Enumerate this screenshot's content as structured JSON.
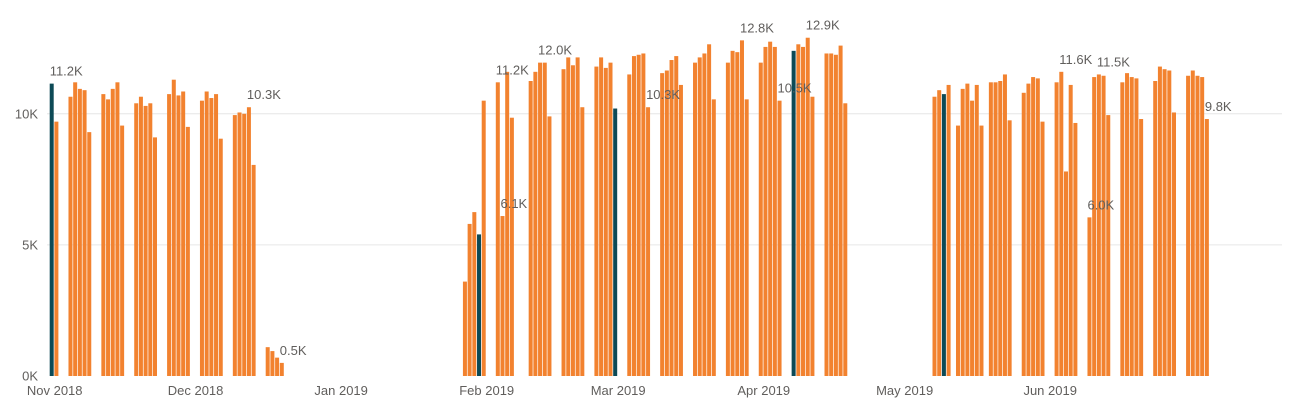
{
  "chart_data": {
    "type": "bar",
    "grid": true,
    "x_axis": {
      "type": "date",
      "range": [
        "2018-10-31",
        "2019-07-21"
      ],
      "ticks": [
        {
          "date": "2018-11-01",
          "label": "Nov 2018"
        },
        {
          "date": "2018-12-01",
          "label": "Dec 2018"
        },
        {
          "date": "2019-01-01",
          "label": "Jan 2019"
        },
        {
          "date": "2019-02-01",
          "label": "Feb 2019"
        },
        {
          "date": "2019-03-01",
          "label": "Mar 2019"
        },
        {
          "date": "2019-04-01",
          "label": "Apr 2019"
        },
        {
          "date": "2019-05-01",
          "label": "May 2019"
        },
        {
          "date": "2019-06-01",
          "label": "Jun 2019"
        }
      ]
    },
    "y_axis": {
      "ylim": [
        0,
        13500
      ],
      "ticks": [
        {
          "value": 0,
          "label": "0K"
        },
        {
          "value": 5000,
          "label": "5K"
        },
        {
          "value": 10000,
          "label": "10K"
        }
      ]
    },
    "colors": {
      "default": "#f2822f",
      "highlight": "#0d4a56",
      "grid": "#e6e6e6",
      "text": "#605e5c"
    },
    "data": [
      {
        "date": "2018-11-01",
        "value": 11150,
        "highlight": true,
        "label": "11.2K"
      },
      {
        "date": "2018-11-02",
        "value": 9700
      },
      {
        "date": "2018-11-05",
        "value": 10650
      },
      {
        "date": "2018-11-06",
        "value": 11200
      },
      {
        "date": "2018-11-07",
        "value": 10950
      },
      {
        "date": "2018-11-08",
        "value": 10900
      },
      {
        "date": "2018-11-09",
        "value": 9300
      },
      {
        "date": "2018-11-12",
        "value": 10750
      },
      {
        "date": "2018-11-13",
        "value": 10550
      },
      {
        "date": "2018-11-14",
        "value": 10950
      },
      {
        "date": "2018-11-15",
        "value": 11200
      },
      {
        "date": "2018-11-16",
        "value": 9550
      },
      {
        "date": "2018-11-19",
        "value": 10400
      },
      {
        "date": "2018-11-20",
        "value": 10650
      },
      {
        "date": "2018-11-21",
        "value": 10300
      },
      {
        "date": "2018-11-22",
        "value": 10400
      },
      {
        "date": "2018-11-23",
        "value": 9100
      },
      {
        "date": "2018-11-26",
        "value": 10750
      },
      {
        "date": "2018-11-27",
        "value": 11300
      },
      {
        "date": "2018-11-28",
        "value": 10700
      },
      {
        "date": "2018-11-29",
        "value": 10850
      },
      {
        "date": "2018-11-30",
        "value": 9500
      },
      {
        "date": "2018-12-03",
        "value": 10500
      },
      {
        "date": "2018-12-04",
        "value": 10850
      },
      {
        "date": "2018-12-05",
        "value": 10600
      },
      {
        "date": "2018-12-06",
        "value": 10750
      },
      {
        "date": "2018-12-07",
        "value": 9050
      },
      {
        "date": "2018-12-10",
        "value": 9950
      },
      {
        "date": "2018-12-11",
        "value": 10050
      },
      {
        "date": "2018-12-12",
        "value": 10000
      },
      {
        "date": "2018-12-13",
        "value": 10250,
        "label": "10.3K"
      },
      {
        "date": "2018-12-14",
        "value": 8050
      },
      {
        "date": "2018-12-17",
        "value": 1100
      },
      {
        "date": "2018-12-18",
        "value": 950
      },
      {
        "date": "2018-12-19",
        "value": 700
      },
      {
        "date": "2018-12-20",
        "value": 500,
        "label": "0.5K"
      },
      {
        "date": "2019-01-28",
        "value": 3600
      },
      {
        "date": "2019-01-29",
        "value": 5800
      },
      {
        "date": "2019-01-30",
        "value": 6250
      },
      {
        "date": "2019-01-31",
        "value": 5400,
        "highlight": true
      },
      {
        "date": "2019-02-01",
        "value": 10500
      },
      {
        "date": "2019-02-04",
        "value": 11200,
        "label": "11.2K"
      },
      {
        "date": "2019-02-05",
        "value": 6100,
        "label": "6.1K"
      },
      {
        "date": "2019-02-06",
        "value": 11600
      },
      {
        "date": "2019-02-07",
        "value": 9850
      },
      {
        "date": "2019-02-11",
        "value": 11250
      },
      {
        "date": "2019-02-12",
        "value": 11600
      },
      {
        "date": "2019-02-13",
        "value": 11950,
        "label": "12.0K"
      },
      {
        "date": "2019-02-14",
        "value": 11950
      },
      {
        "date": "2019-02-15",
        "value": 9900
      },
      {
        "date": "2019-02-18",
        "value": 11700
      },
      {
        "date": "2019-02-19",
        "value": 12150
      },
      {
        "date": "2019-02-20",
        "value": 11850
      },
      {
        "date": "2019-02-21",
        "value": 12150
      },
      {
        "date": "2019-02-22",
        "value": 10250
      },
      {
        "date": "2019-02-25",
        "value": 11800
      },
      {
        "date": "2019-02-26",
        "value": 12150
      },
      {
        "date": "2019-02-27",
        "value": 11750
      },
      {
        "date": "2019-02-28",
        "value": 11950
      },
      {
        "date": "2019-03-01",
        "value": 10200,
        "highlight": true
      },
      {
        "date": "2019-03-04",
        "value": 11500
      },
      {
        "date": "2019-03-05",
        "value": 12200
      },
      {
        "date": "2019-03-06",
        "value": 12250
      },
      {
        "date": "2019-03-07",
        "value": 12300
      },
      {
        "date": "2019-03-08",
        "value": 10250,
        "label": "10.3K"
      },
      {
        "date": "2019-03-11",
        "value": 11550
      },
      {
        "date": "2019-03-12",
        "value": 11650
      },
      {
        "date": "2019-03-13",
        "value": 12050
      },
      {
        "date": "2019-03-14",
        "value": 12200
      },
      {
        "date": "2019-03-15",
        "value": 11100
      },
      {
        "date": "2019-03-18",
        "value": 11950
      },
      {
        "date": "2019-03-19",
        "value": 12150
      },
      {
        "date": "2019-03-20",
        "value": 12300
      },
      {
        "date": "2019-03-21",
        "value": 12650
      },
      {
        "date": "2019-03-22",
        "value": 10550
      },
      {
        "date": "2019-03-25",
        "value": 11950
      },
      {
        "date": "2019-03-26",
        "value": 12400
      },
      {
        "date": "2019-03-27",
        "value": 12350
      },
      {
        "date": "2019-03-28",
        "value": 12800,
        "label": "12.8K"
      },
      {
        "date": "2019-03-29",
        "value": 10550
      },
      {
        "date": "2019-04-01",
        "value": 11950
      },
      {
        "date": "2019-04-02",
        "value": 12550
      },
      {
        "date": "2019-04-03",
        "value": 12750
      },
      {
        "date": "2019-04-04",
        "value": 12550
      },
      {
        "date": "2019-04-05",
        "value": 10500,
        "label": "10.5K"
      },
      {
        "date": "2019-04-08",
        "value": 12400,
        "highlight": true
      },
      {
        "date": "2019-04-09",
        "value": 12650
      },
      {
        "date": "2019-04-10",
        "value": 12550
      },
      {
        "date": "2019-04-11",
        "value": 12900,
        "label": "12.9K"
      },
      {
        "date": "2019-04-12",
        "value": 10650
      },
      {
        "date": "2019-04-15",
        "value": 12300
      },
      {
        "date": "2019-04-16",
        "value": 12300
      },
      {
        "date": "2019-04-17",
        "value": 12250
      },
      {
        "date": "2019-04-18",
        "value": 12600
      },
      {
        "date": "2019-04-19",
        "value": 10400
      },
      {
        "date": "2019-05-08",
        "value": 10650
      },
      {
        "date": "2019-05-09",
        "value": 10900
      },
      {
        "date": "2019-05-10",
        "value": 10750,
        "highlight": true
      },
      {
        "date": "2019-05-11",
        "value": 11100
      },
      {
        "date": "2019-05-13",
        "value": 9550
      },
      {
        "date": "2019-05-14",
        "value": 10950
      },
      {
        "date": "2019-05-15",
        "value": 11150
      },
      {
        "date": "2019-05-16",
        "value": 10500
      },
      {
        "date": "2019-05-17",
        "value": 11100
      },
      {
        "date": "2019-05-18",
        "value": 9550
      },
      {
        "date": "2019-05-20",
        "value": 11200
      },
      {
        "date": "2019-05-21",
        "value": 11200
      },
      {
        "date": "2019-05-22",
        "value": 11250
      },
      {
        "date": "2019-05-23",
        "value": 11500
      },
      {
        "date": "2019-05-24",
        "value": 9750
      },
      {
        "date": "2019-05-27",
        "value": 10800
      },
      {
        "date": "2019-05-28",
        "value": 11150
      },
      {
        "date": "2019-05-29",
        "value": 11400
      },
      {
        "date": "2019-05-30",
        "value": 11350
      },
      {
        "date": "2019-05-31",
        "value": 9700
      },
      {
        "date": "2019-06-03",
        "value": 11200
      },
      {
        "date": "2019-06-04",
        "value": 11600,
        "label": "11.6K"
      },
      {
        "date": "2019-06-05",
        "value": 7800
      },
      {
        "date": "2019-06-06",
        "value": 11100
      },
      {
        "date": "2019-06-07",
        "value": 9650
      },
      {
        "date": "2019-06-10",
        "value": 6050,
        "label": "6.0K"
      },
      {
        "date": "2019-06-11",
        "value": 11400
      },
      {
        "date": "2019-06-12",
        "value": 11500,
        "label": "11.5K"
      },
      {
        "date": "2019-06-13",
        "value": 11450
      },
      {
        "date": "2019-06-14",
        "value": 9950
      },
      {
        "date": "2019-06-17",
        "value": 11200
      },
      {
        "date": "2019-06-18",
        "value": 11550
      },
      {
        "date": "2019-06-19",
        "value": 11400
      },
      {
        "date": "2019-06-20",
        "value": 11350
      },
      {
        "date": "2019-06-21",
        "value": 9800
      },
      {
        "date": "2019-06-24",
        "value": 11250
      },
      {
        "date": "2019-06-25",
        "value": 11800
      },
      {
        "date": "2019-06-26",
        "value": 11700
      },
      {
        "date": "2019-06-27",
        "value": 11650
      },
      {
        "date": "2019-06-28",
        "value": 10050
      },
      {
        "date": "2019-07-01",
        "value": 11450
      },
      {
        "date": "2019-07-02",
        "value": 11650
      },
      {
        "date": "2019-07-03",
        "value": 11450
      },
      {
        "date": "2019-07-04",
        "value": 11400
      },
      {
        "date": "2019-07-05",
        "value": 9800,
        "label": "9.8K"
      }
    ]
  }
}
